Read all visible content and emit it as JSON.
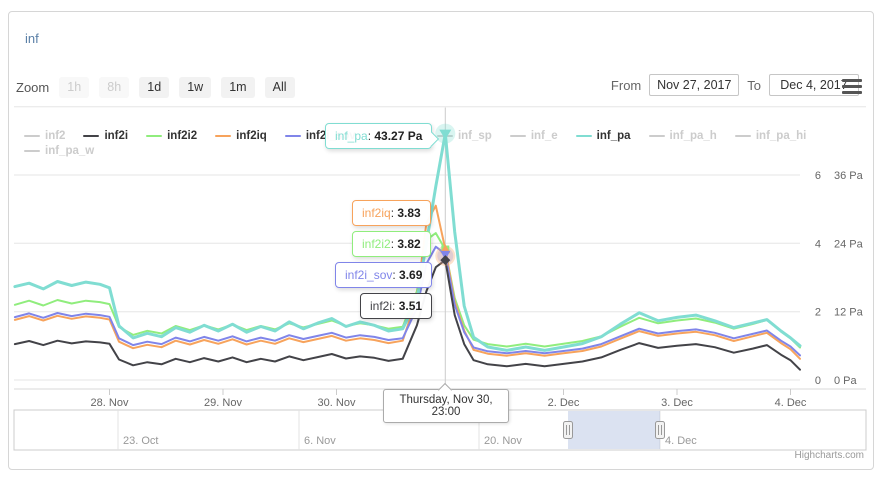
{
  "title": "inf",
  "toolbar": {
    "zoom_label": "Zoom",
    "buttons": [
      {
        "label": "1h",
        "enabled": false
      },
      {
        "label": "8h",
        "enabled": false
      },
      {
        "label": "1d",
        "enabled": true
      },
      {
        "label": "1w",
        "enabled": true
      },
      {
        "label": "1m",
        "enabled": true
      },
      {
        "label": "All",
        "enabled": true
      }
    ],
    "from_label": "From",
    "from_value": "Nov 27, 2017",
    "to_label": "To",
    "to_value": "Dec 4, 2017",
    "menu_icon": "hamburger-icon"
  },
  "legend": {
    "items": [
      {
        "label": "inf2",
        "color": "#7cb5ec",
        "enabled": false
      },
      {
        "label": "inf2i",
        "color": "#434348",
        "enabled": true
      },
      {
        "label": "inf2i2",
        "color": "#90ed7d",
        "enabled": true
      },
      {
        "label": "inf2iq",
        "color": "#f7a35c",
        "enabled": true
      },
      {
        "label": "inf2i_sov",
        "color": "#8085e9",
        "enabled": true
      },
      {
        "label": "inf_t",
        "color": "#cccccc",
        "enabled": false
      },
      {
        "label": "inf_sp",
        "color": "#cccccc",
        "enabled": false
      },
      {
        "label": "inf_e",
        "color": "#cccccc",
        "enabled": false
      },
      {
        "label": "inf_pa",
        "color": "#80ddd2",
        "enabled": true
      },
      {
        "label": "inf_pa_h",
        "color": "#cccccc",
        "enabled": false
      },
      {
        "label": "inf_pa_hi",
        "color": "#cccccc",
        "enabled": false
      },
      {
        "label": "inf_pa_w",
        "color": "#cccccc",
        "enabled": false
      }
    ]
  },
  "chart_data": {
    "type": "line",
    "title": "inf",
    "x_unit": "hours since 2017-11-27 00:00",
    "x_hours": [
      4,
      7,
      10,
      13,
      16,
      19,
      22,
      24,
      26,
      29,
      32,
      35,
      38,
      41,
      44,
      47,
      50,
      53,
      56,
      59,
      62,
      65,
      68,
      71,
      74,
      77,
      80,
      83,
      86,
      89,
      91,
      93,
      95,
      97,
      99,
      101,
      104,
      108,
      112,
      116,
      120,
      124,
      128,
      132,
      136,
      140,
      144,
      148,
      152,
      156,
      160,
      163,
      166,
      168,
      170
    ],
    "series": [
      {
        "name": "inf2i2",
        "color": "#90ed7d",
        "axis": "value",
        "width": 2,
        "values": [
          2.2,
          2.32,
          2.18,
          2.34,
          2.24,
          2.32,
          2.28,
          2.22,
          1.55,
          1.32,
          1.44,
          1.36,
          1.58,
          1.46,
          1.6,
          1.48,
          1.62,
          1.46,
          1.58,
          1.48,
          1.66,
          1.54,
          1.64,
          1.74,
          1.58,
          1.66,
          1.6,
          1.5,
          1.56,
          2.6,
          4.1,
          4.3,
          3.82,
          2.4,
          1.6,
          1.18,
          1.05,
          0.98,
          1.06,
          0.98,
          1.06,
          1.14,
          1.28,
          1.56,
          1.82,
          1.66,
          1.74,
          1.8,
          1.68,
          1.5,
          1.64,
          1.76,
          1.42,
          1.22,
          0.95
        ]
      },
      {
        "name": "inf2iq",
        "color": "#f7a35c",
        "axis": "value",
        "width": 2,
        "values": [
          1.76,
          1.87,
          1.74,
          1.88,
          1.79,
          1.86,
          1.82,
          1.77,
          1.12,
          0.93,
          1.03,
          0.96,
          1.15,
          1.04,
          1.17,
          1.06,
          1.19,
          1.04,
          1.15,
          1.06,
          1.22,
          1.11,
          1.2,
          1.29,
          1.15,
          1.22,
          1.17,
          1.08,
          1.15,
          2.4,
          4.6,
          5.1,
          3.83,
          2.3,
          1.45,
          0.88,
          0.77,
          0.71,
          0.78,
          0.71,
          0.78,
          0.85,
          0.98,
          1.21,
          1.43,
          1.29,
          1.36,
          1.41,
          1.31,
          1.14,
          1.28,
          1.38,
          1.08,
          0.9,
          0.62
        ]
      },
      {
        "name": "inf2i_sov",
        "color": "#8085e9",
        "axis": "value",
        "width": 2,
        "values": [
          1.84,
          1.95,
          1.82,
          1.96,
          1.87,
          1.94,
          1.9,
          1.85,
          1.22,
          1.02,
          1.12,
          1.05,
          1.24,
          1.13,
          1.26,
          1.15,
          1.28,
          1.13,
          1.24,
          1.15,
          1.31,
          1.2,
          1.29,
          1.38,
          1.24,
          1.31,
          1.26,
          1.17,
          1.22,
          2.1,
          3.4,
          3.9,
          3.69,
          2.2,
          1.4,
          0.95,
          0.84,
          0.78,
          0.85,
          0.78,
          0.85,
          0.92,
          1.05,
          1.28,
          1.5,
          1.36,
          1.43,
          1.48,
          1.38,
          1.22,
          1.35,
          1.45,
          1.15,
          0.98,
          0.72
        ]
      },
      {
        "name": "inf2i",
        "color": "#434348",
        "axis": "value",
        "width": 2,
        "values": [
          1.05,
          1.14,
          1.02,
          1.15,
          1.07,
          1.13,
          1.1,
          1.06,
          0.6,
          0.43,
          0.52,
          0.46,
          0.62,
          0.52,
          0.64,
          0.54,
          0.66,
          0.52,
          0.62,
          0.54,
          0.69,
          0.58,
          0.67,
          0.76,
          0.63,
          0.69,
          0.65,
          0.56,
          0.62,
          1.6,
          2.6,
          3.3,
          3.51,
          1.9,
          1.05,
          0.58,
          0.46,
          0.4,
          0.47,
          0.4,
          0.47,
          0.54,
          0.66,
          0.88,
          1.08,
          0.94,
          1.0,
          1.05,
          0.96,
          0.8,
          0.92,
          1.02,
          0.74,
          0.58,
          0.3
        ]
      },
      {
        "name": "inf_pa",
        "color": "#80ddd2",
        "axis": "pa",
        "width": 3,
        "values": [
          16.4,
          17.0,
          16.0,
          17.3,
          16.6,
          17.2,
          16.8,
          16.2,
          9.5,
          7.4,
          8.2,
          7.6,
          9.2,
          8.4,
          9.6,
          8.6,
          9.8,
          8.4,
          9.4,
          8.6,
          10.2,
          9.0,
          10.0,
          10.8,
          9.4,
          10.2,
          9.6,
          8.6,
          9.0,
          14.0,
          24.0,
          34.0,
          43.27,
          26.0,
          13.0,
          7.5,
          5.8,
          5.2,
          5.8,
          5.2,
          5.8,
          6.4,
          7.6,
          9.8,
          11.8,
          10.4,
          11.0,
          11.4,
          10.4,
          9.2,
          10.0,
          10.6,
          8.6,
          7.4,
          6.0
        ]
      }
    ],
    "yaxis_value": {
      "tick_values": [
        0,
        2,
        4,
        6
      ],
      "gridline_values": [
        0,
        2,
        4,
        6,
        8
      ]
    },
    "yaxis_pa": {
      "tick_labels": [
        "0 Pa",
        "12 Pa",
        "24 Pa",
        "36 Pa"
      ]
    },
    "xaxis": {
      "ticks": [
        {
          "hour": 24,
          "label": "28. Nov"
        },
        {
          "hour": 48,
          "label": "29. Nov"
        },
        {
          "hour": 72,
          "label": "30. Nov"
        },
        {
          "hour": 120,
          "label": "2. Dec"
        },
        {
          "hour": 144,
          "label": "3. Dec"
        },
        {
          "hour": 168,
          "label": "4. Dec"
        }
      ]
    },
    "navigator": {
      "labels": [
        "23. Oct",
        "6. Nov",
        "20. Nov",
        "4. Dec"
      ]
    },
    "legend_position": "top",
    "grid": true
  },
  "tooltips": {
    "x_label": "Thursday, Nov 30, 23:00",
    "pa_box": {
      "series": "inf_pa",
      "value": "43.27 Pa",
      "color": "#80ddd2"
    },
    "boxes": [
      {
        "series": "inf2iq",
        "value": "3.83",
        "color": "#f7a35c"
      },
      {
        "series": "inf2i2",
        "value": "3.82",
        "color": "#90ed7d"
      },
      {
        "series": "inf2i_sov",
        "value": "3.69",
        "color": "#8085e9"
      },
      {
        "series": "inf2i",
        "value": "3.51",
        "color": "#434348"
      }
    ]
  },
  "credits": "Highcharts.com"
}
